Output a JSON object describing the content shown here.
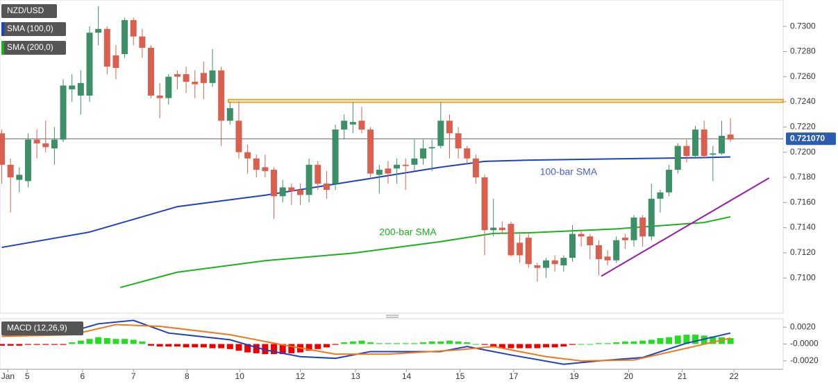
{
  "chart_data": [
    {
      "type": "candlestick",
      "title": "NZD/USD",
      "xlim": [
        -0.2,
        89
      ],
      "ylim": [
        0.7072,
        0.7321
      ],
      "yticks": [
        {
          "value": 0.71,
          "label": "0.7100"
        },
        {
          "value": 0.712,
          "label": "0.7120"
        },
        {
          "value": 0.714,
          "label": "0.7140"
        },
        {
          "value": 0.716,
          "label": "0.7160"
        },
        {
          "value": 0.718,
          "label": "0.7180"
        },
        {
          "value": 0.72,
          "label": "0.7200"
        },
        {
          "value": 0.722,
          "label": "0.7220"
        },
        {
          "value": 0.724,
          "label": "0.7240"
        },
        {
          "value": 0.726,
          "label": "0.7260"
        },
        {
          "value": 0.728,
          "label": "0.7280"
        },
        {
          "value": 0.73,
          "label": "0.7300"
        }
      ],
      "xticks": [
        {
          "value": 0.7,
          "label": "Jan"
        },
        {
          "value": 2.9,
          "label": "5"
        },
        {
          "value": 9.2,
          "label": "6"
        },
        {
          "value": 15,
          "label": "7"
        },
        {
          "value": 21.1,
          "label": "8"
        },
        {
          "value": 27.1,
          "label": "10"
        },
        {
          "value": 34,
          "label": "12"
        },
        {
          "value": 40.3,
          "label": "13"
        },
        {
          "value": 46.1,
          "label": "14"
        },
        {
          "value": 52.2,
          "label": "15"
        },
        {
          "value": 58.3,
          "label": "17"
        },
        {
          "value": 65.2,
          "label": "19"
        },
        {
          "value": 71.4,
          "label": "20"
        },
        {
          "value": 77.5,
          "label": "21"
        },
        {
          "value": 83.4,
          "label": "22"
        }
      ],
      "up_color": "#3d8f68",
      "down_color": "#d9604f",
      "open": [
        0.7215,
        0.719,
        0.7178,
        0.7177,
        0.721,
        0.7207,
        0.7203,
        0.721,
        0.725,
        0.7245,
        0.7245,
        0.7295,
        0.7298,
        0.7277,
        0.7278,
        0.7305,
        0.7292,
        0.7283,
        0.7245,
        0.7243,
        0.7262,
        0.7262,
        0.7256,
        0.7263,
        0.7255,
        0.7265,
        0.7225,
        0.7225,
        0.72,
        0.7195,
        0.7188,
        0.7186,
        0.7165,
        0.7172,
        0.717,
        0.7166,
        0.719,
        0.7175,
        0.7175,
        0.7218,
        0.7222,
        0.7225,
        0.7218,
        0.7182,
        0.7187,
        0.7187,
        0.719,
        0.719,
        0.7195,
        0.7203,
        0.7205,
        0.7225,
        0.7215,
        0.7203,
        0.7195,
        0.718,
        0.7138,
        0.714,
        0.7143,
        0.7128,
        0.7132,
        0.711,
        0.7108,
        0.7114,
        0.711,
        0.7116,
        0.7135,
        0.7133,
        0.7126,
        0.7117,
        0.7114,
        0.7132,
        0.713,
        0.7148,
        0.7133,
        0.7163,
        0.7168,
        0.7186,
        0.7205,
        0.7197,
        0.7218,
        0.7198,
        0.7199,
        0.7214
      ],
      "high": [
        0.7218,
        0.7195,
        0.7188,
        0.7215,
        0.7218,
        0.7225,
        0.722,
        0.7258,
        0.7262,
        0.7265,
        0.73,
        0.7316,
        0.73,
        0.7285,
        0.7307,
        0.7307,
        0.7298,
        0.7285,
        0.7255,
        0.7262,
        0.7265,
        0.7268,
        0.7265,
        0.7272,
        0.7282,
        0.7268,
        0.724,
        0.724,
        0.7206,
        0.7198,
        0.7198,
        0.7188,
        0.7178,
        0.7175,
        0.7175,
        0.7195,
        0.7193,
        0.7185,
        0.7222,
        0.723,
        0.724,
        0.7236,
        0.722,
        0.719,
        0.7193,
        0.7195,
        0.7195,
        0.721,
        0.721,
        0.721,
        0.724,
        0.723,
        0.722,
        0.7205,
        0.7198,
        0.7182,
        0.7163,
        0.7145,
        0.7145,
        0.7135,
        0.7135,
        0.7112,
        0.7116,
        0.7118,
        0.7118,
        0.7142,
        0.7138,
        0.7135,
        0.713,
        0.7122,
        0.7133,
        0.7135,
        0.715,
        0.715,
        0.7175,
        0.717,
        0.719,
        0.7207,
        0.721,
        0.7221,
        0.7225,
        0.7205,
        0.7225,
        0.7227
      ],
      "low": [
        0.7175,
        0.7152,
        0.7168,
        0.7172,
        0.7195,
        0.72,
        0.719,
        0.7208,
        0.724,
        0.723,
        0.724,
        0.7285,
        0.7262,
        0.7258,
        0.7275,
        0.7285,
        0.7275,
        0.7243,
        0.7227,
        0.7238,
        0.725,
        0.7247,
        0.7243,
        0.7242,
        0.7252,
        0.7205,
        0.7222,
        0.7195,
        0.7183,
        0.718,
        0.718,
        0.7147,
        0.716,
        0.7158,
        0.7158,
        0.716,
        0.717,
        0.7163,
        0.717,
        0.721,
        0.7215,
        0.7215,
        0.718,
        0.7167,
        0.7175,
        0.7175,
        0.717,
        0.7185,
        0.719,
        0.7185,
        0.7203,
        0.7195,
        0.7195,
        0.719,
        0.7175,
        0.7118,
        0.7133,
        0.7135,
        0.7117,
        0.7112,
        0.7108,
        0.7097,
        0.71,
        0.7105,
        0.7105,
        0.7113,
        0.7125,
        0.7115,
        0.7102,
        0.711,
        0.7112,
        0.7123,
        0.7125,
        0.7125,
        0.713,
        0.7152,
        0.7165,
        0.7183,
        0.7192,
        0.7195,
        0.7195,
        0.7177,
        0.7198,
        0.7208
      ],
      "close": [
        0.719,
        0.718,
        0.7182,
        0.721,
        0.7207,
        0.7204,
        0.721,
        0.7253,
        0.7253,
        0.7255,
        0.7295,
        0.7298,
        0.7268,
        0.7267,
        0.7305,
        0.7292,
        0.7283,
        0.7245,
        0.7243,
        0.726,
        0.726,
        0.7256,
        0.7254,
        0.7255,
        0.7265,
        0.7225,
        0.7235,
        0.72,
        0.7195,
        0.7186,
        0.7185,
        0.7165,
        0.7172,
        0.7169,
        0.7166,
        0.719,
        0.7175,
        0.717,
        0.7218,
        0.7225,
        0.7224,
        0.7218,
        0.7183,
        0.7186,
        0.7183,
        0.719,
        0.7189,
        0.7195,
        0.7203,
        0.7204,
        0.7225,
        0.7215,
        0.7203,
        0.7195,
        0.718,
        0.7138,
        0.714,
        0.7138,
        0.7118,
        0.7118,
        0.7111,
        0.7108,
        0.7114,
        0.7111,
        0.7116,
        0.7135,
        0.7133,
        0.7126,
        0.7115,
        0.7114,
        0.713,
        0.713,
        0.7148,
        0.7133,
        0.7163,
        0.7168,
        0.7186,
        0.7205,
        0.7197,
        0.7218,
        0.7197,
        0.7199,
        0.7213,
        0.721
      ],
      "series": [
        {
          "name": "SMA (100,0)",
          "color": "#1f3fc4",
          "x": [
            0,
            10,
            20,
            30,
            41,
            50,
            55,
            60,
            70,
            80,
            83
          ],
          "values": [
            0.71243,
            0.71365,
            0.71567,
            0.71658,
            0.7178,
            0.71881,
            0.71927,
            0.71937,
            0.71947,
            0.71957,
            0.71962
          ]
        },
        {
          "name": "SMA (200,0)",
          "color": "#19b21a",
          "x": [
            13.5,
            20,
            30,
            40,
            50,
            56,
            60,
            70,
            80,
            83
          ],
          "values": [
            0.70924,
            0.71046,
            0.71137,
            0.71197,
            0.71289,
            0.71354,
            0.71359,
            0.7139,
            0.71441,
            0.71486
          ]
        }
      ],
      "annotations": [
        {
          "text": "100-bar SMA",
          "x": 61.3,
          "y": 0.7184,
          "color": "#4a5fd0"
        },
        {
          "text": "200-bar SMA",
          "x": 43,
          "y": 0.7136,
          "color": "#19b21a"
        }
      ],
      "resistance": {
        "x": [
          25.8,
          89
        ],
        "y": [
          0.72418,
          0.72397
        ],
        "color": "#f0a020"
      },
      "support": {
        "x": [
          68.3,
          87.4
        ],
        "y": [
          0.71015,
          0.71795
        ],
        "color": "#9a1aa8"
      },
      "last": {
        "value": 0.72107,
        "value_label": "0.721070",
        "color": "#2a5db0"
      }
    },
    {
      "type": "macd",
      "title": "MACD (12,26,9)",
      "xlim": [
        -0.2,
        89
      ],
      "ylim": [
        -0.003,
        0.003
      ],
      "yticks": [
        {
          "value": 0.002,
          "label": "0.0020"
        },
        {
          "value": 0,
          "label": "-0.0000"
        },
        {
          "value": -0.002,
          "label": "-0.0020"
        }
      ],
      "histogram": [
        -0.0002,
        -0.0002,
        -0.0002,
        -0.0001,
        -0.0001,
        -0.0001,
        -0.0001,
        -0.0001,
        0.0002,
        0.0004,
        0.0006,
        0.0008,
        0.0007,
        0.0006,
        0.0006,
        0.0005,
        0.0003,
        -0.0002,
        -0.0003,
        -0.0003,
        -0.0003,
        -0.0004,
        -0.0004,
        -0.0004,
        -0.0005,
        -0.0005,
        -0.0006,
        -0.0008,
        -0.001,
        -0.0011,
        -0.0012,
        -0.0012,
        -0.0012,
        -0.0011,
        -0.001,
        -0.0008,
        -0.0006,
        -0.0004,
        -0.0001,
        0.0002,
        0.0003,
        0.0004,
        0.0002,
        0.0001,
        0.0001,
        0.0001,
        0.0001,
        0.0001,
        0.0002,
        0.0003,
        0.0003,
        0.0004,
        0.0003,
        0.0002,
        0,
        -0.0001,
        -0.0004,
        -0.0005,
        -0.0005,
        -0.0005,
        -0.0005,
        -0.0005,
        -0.0004,
        -0.0004,
        -0.0003,
        -0.0001,
        0,
        0,
        0.0001,
        0.0001,
        0.0002,
        0.0003,
        0.0003,
        0.0004,
        0.0005,
        0.0007,
        0.0008,
        0.001,
        0.0011,
        0.0011,
        0.001,
        0.0009,
        0.0008,
        0.0007
      ],
      "up_color": "#22dd22",
      "down_color": "#ee0000",
      "series": [
        {
          "color": "#1f3fc4",
          "x": [
            0,
            8,
            11,
            15,
            19,
            26,
            30,
            34,
            38,
            42,
            50,
            53,
            58,
            64,
            68,
            73,
            78,
            83
          ],
          "values": [
            0.0009,
            0.0015,
            0.0024,
            0.0028,
            0.0013,
            0.0005,
            -0.0007,
            -0.0015,
            -0.0017,
            -0.0009,
            -0.0009,
            -0.0003,
            -0.0013,
            -0.0024,
            -0.002,
            -0.0016,
            0.0001,
            0.0013
          ]
        },
        {
          "color": "#f07818",
          "x": [
            0,
            8,
            13,
            18,
            26,
            32,
            38,
            44,
            52,
            56,
            62,
            66,
            72,
            78,
            83
          ],
          "values": [
            0.0009,
            0.0011,
            0.0023,
            0.0021,
            0.0011,
            -0.0001,
            -0.0012,
            -0.0012,
            -0.0007,
            -0.0003,
            -0.0015,
            -0.002,
            -0.0019,
            -0.0005,
            0.0007
          ]
        }
      ]
    }
  ]
}
